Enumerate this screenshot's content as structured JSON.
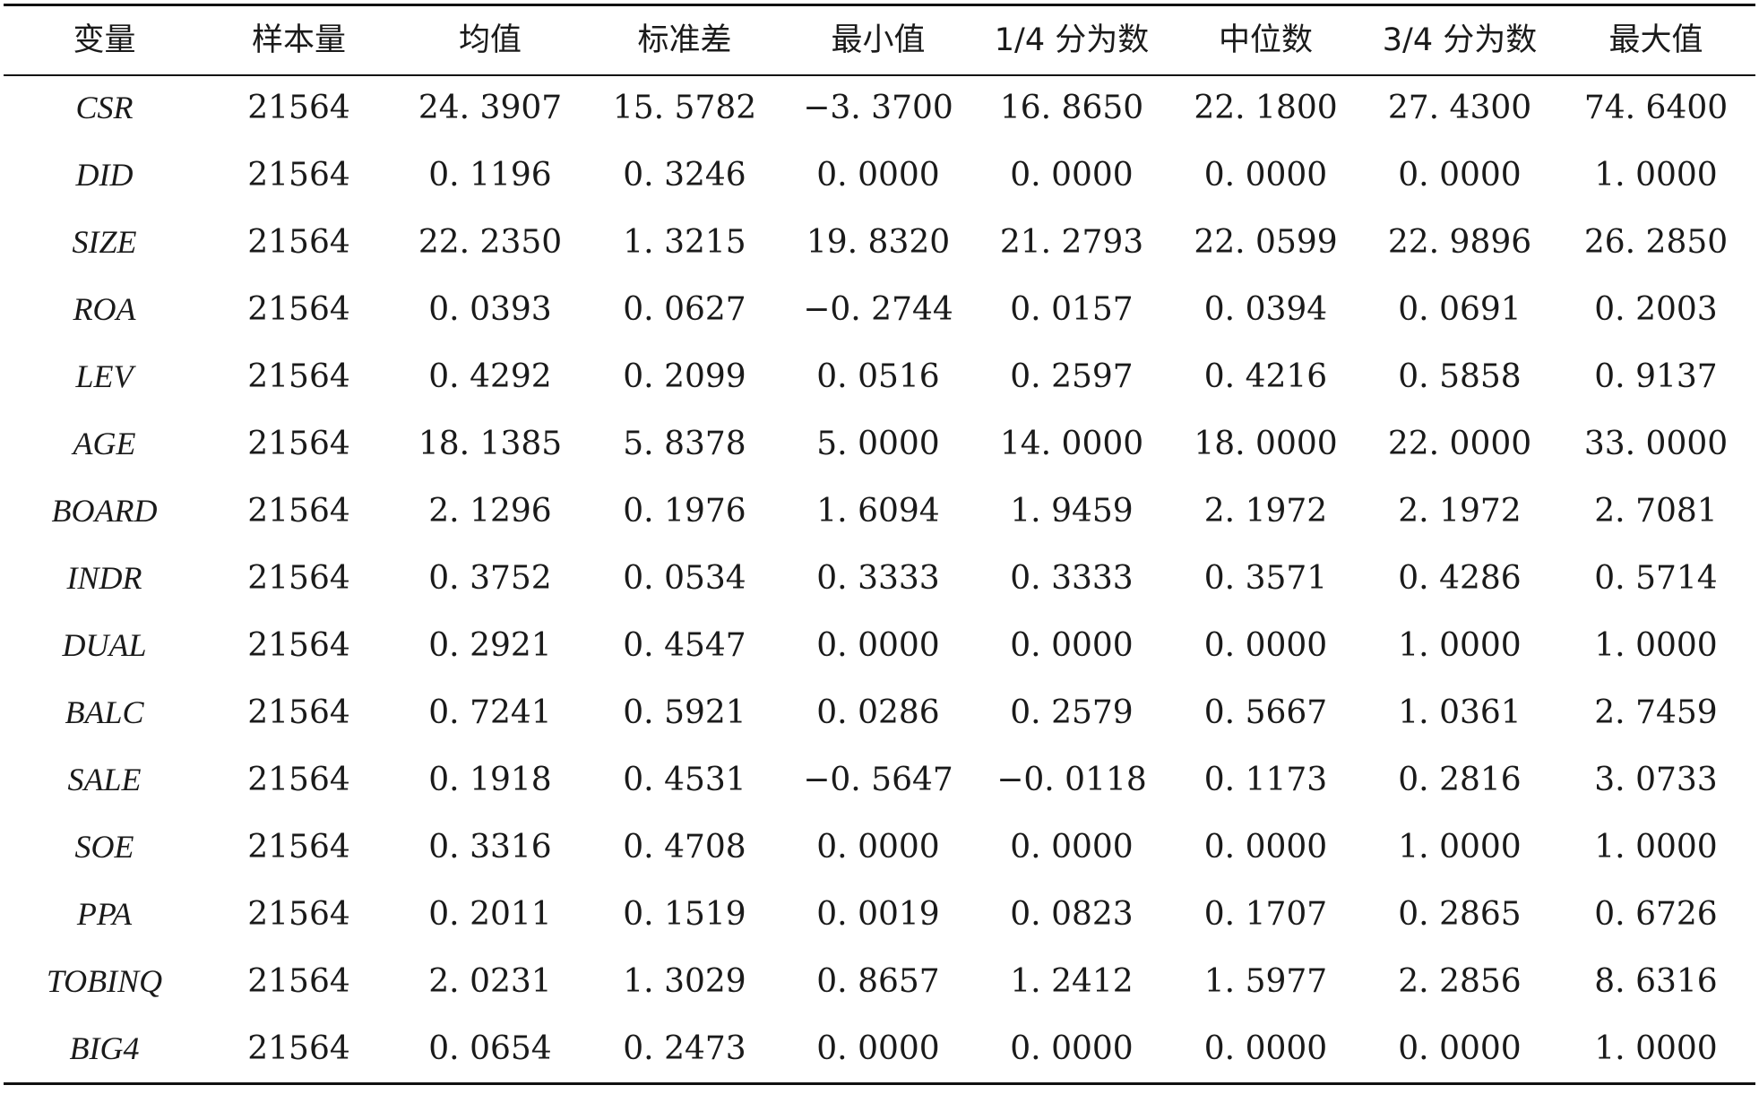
{
  "table": {
    "headers": [
      "变量",
      "样本量",
      "均值",
      "标准差",
      "最小值",
      "1/4 分为数",
      "中位数",
      "3/4 分为数",
      "最大值"
    ],
    "rows": [
      [
        "CSR",
        "21564",
        "24. 3907",
        "15. 5782",
        "−3. 3700",
        "16. 8650",
        "22. 1800",
        "27. 4300",
        "74. 6400"
      ],
      [
        "DID",
        "21564",
        "0. 1196",
        "0. 3246",
        "0. 0000",
        "0. 0000",
        "0. 0000",
        "0. 0000",
        "1. 0000"
      ],
      [
        "SIZE",
        "21564",
        "22. 2350",
        "1. 3215",
        "19. 8320",
        "21. 2793",
        "22. 0599",
        "22. 9896",
        "26. 2850"
      ],
      [
        "ROA",
        "21564",
        "0. 0393",
        "0. 0627",
        "−0. 2744",
        "0. 0157",
        "0. 0394",
        "0. 0691",
        "0. 2003"
      ],
      [
        "LEV",
        "21564",
        "0. 4292",
        "0. 2099",
        "0. 0516",
        "0. 2597",
        "0. 4216",
        "0. 5858",
        "0. 9137"
      ],
      [
        "AGE",
        "21564",
        "18. 1385",
        "5. 8378",
        "5. 0000",
        "14. 0000",
        "18. 0000",
        "22. 0000",
        "33. 0000"
      ],
      [
        "BOARD",
        "21564",
        "2. 1296",
        "0. 1976",
        "1. 6094",
        "1. 9459",
        "2. 1972",
        "2. 1972",
        "2. 7081"
      ],
      [
        "INDR",
        "21564",
        "0. 3752",
        "0. 0534",
        "0. 3333",
        "0. 3333",
        "0. 3571",
        "0. 4286",
        "0. 5714"
      ],
      [
        "DUAL",
        "21564",
        "0. 2921",
        "0. 4547",
        "0. 0000",
        "0. 0000",
        "0. 0000",
        "1. 0000",
        "1. 0000"
      ],
      [
        "BALC",
        "21564",
        "0. 7241",
        "0. 5921",
        "0. 0286",
        "0. 2579",
        "0. 5667",
        "1. 0361",
        "2. 7459"
      ],
      [
        "SALE",
        "21564",
        "0. 1918",
        "0. 4531",
        "−0. 5647",
        "−0. 0118",
        "0. 1173",
        "0. 2816",
        "3. 0733"
      ],
      [
        "SOE",
        "21564",
        "0. 3316",
        "0. 4708",
        "0. 0000",
        "0. 0000",
        "0. 0000",
        "1. 0000",
        "1. 0000"
      ],
      [
        "PPA",
        "21564",
        "0. 2011",
        "0. 1519",
        "0. 0019",
        "0. 0823",
        "0. 1707",
        "0. 2865",
        "0. 6726"
      ],
      [
        "TOBINQ",
        "21564",
        "2. 0231",
        "1. 3029",
        "0. 8657",
        "1. 2412",
        "1. 5977",
        "2. 2856",
        "8. 6316"
      ],
      [
        "BIG4",
        "21564",
        "0. 0654",
        "0. 2473",
        "0. 0000",
        "0. 0000",
        "0. 0000",
        "0. 0000",
        "1. 0000"
      ]
    ]
  }
}
